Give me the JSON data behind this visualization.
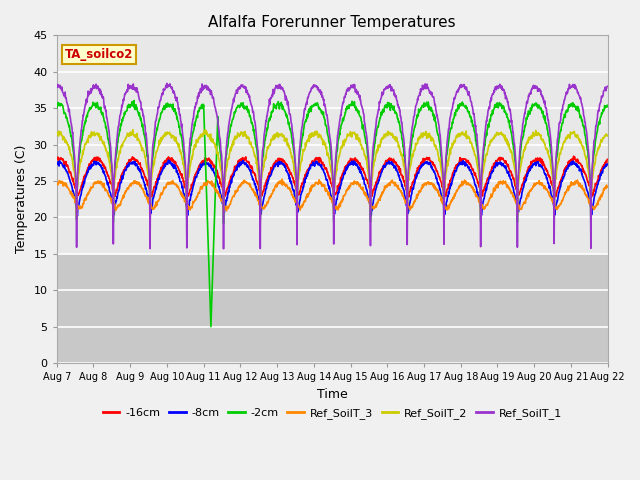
{
  "title": "Alfalfa Forerunner Temperatures",
  "xlabel": "Time",
  "ylabel": "Temperatures (C)",
  "ylim": [
    0,
    45
  ],
  "annotation_text": "TA_soilco2",
  "annotation_color": "#cc0000",
  "annotation_bg": "#ffffcc",
  "annotation_border": "#cc9900",
  "xtick_labels": [
    "Aug 7",
    "Aug 8",
    "Aug 9",
    "Aug 10",
    "Aug 11",
    "Aug 12",
    "Aug 13",
    "Aug 14",
    "Aug 15",
    "Aug 16",
    "Aug 17",
    "Aug 18",
    "Aug 19",
    "Aug 20",
    "Aug 21",
    "Aug 22"
  ],
  "ytick_labels": [
    0,
    5,
    10,
    15,
    20,
    25,
    30,
    35,
    40,
    45
  ],
  "legend": [
    "-16cm",
    "-8cm",
    "-2cm",
    "Ref_SoilT_3",
    "Ref_SoilT_2",
    "Ref_SoilT_1"
  ],
  "line_colors": [
    "#ff0000",
    "#0000ff",
    "#00cc00",
    "#ff8800",
    "#cccc00",
    "#9933cc"
  ],
  "bg_upper": "#e8e8e8",
  "bg_lower": "#d0d0d0",
  "n_days": 15,
  "dt_hours": 0.25
}
